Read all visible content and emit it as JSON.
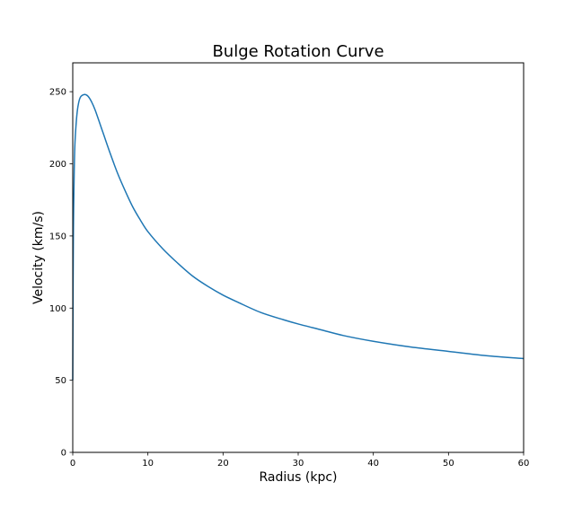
{
  "chart_data": {
    "type": "line",
    "title": "Bulge Rotation Curve",
    "xlabel": "Radius (kpc)",
    "ylabel": "Velocity (km/s)",
    "xlim": [
      0,
      60
    ],
    "ylim": [
      0,
      270
    ],
    "xticks": [
      0,
      10,
      20,
      30,
      40,
      50,
      60
    ],
    "yticks": [
      0,
      50,
      100,
      150,
      200,
      250
    ],
    "grid": false,
    "line_color": "#1f77b4",
    "series": [
      {
        "x": [
          0.0,
          0.05,
          0.1,
          0.2,
          0.3,
          0.5,
          0.7,
          1.0,
          1.5,
          2.0,
          2.5,
          3.0,
          4.0,
          5.0,
          6.0,
          7.0,
          8.0,
          9.0,
          10.0,
          12.0,
          14.0,
          16.0,
          18.0,
          20.0,
          22.0,
          25.0,
          28.0,
          30.0,
          33.0,
          36.0,
          40.0,
          45.0,
          50.0,
          55.0,
          60.0
        ],
        "y": [
          50,
          120,
          160,
          196,
          215,
          231,
          240,
          246,
          248,
          247,
          243,
          237,
          222,
          207,
          193,
          181,
          170,
          161,
          153,
          141,
          131,
          122,
          115,
          109,
          104,
          97,
          92,
          89,
          85,
          81,
          77,
          73,
          70,
          67,
          65
        ]
      }
    ]
  }
}
